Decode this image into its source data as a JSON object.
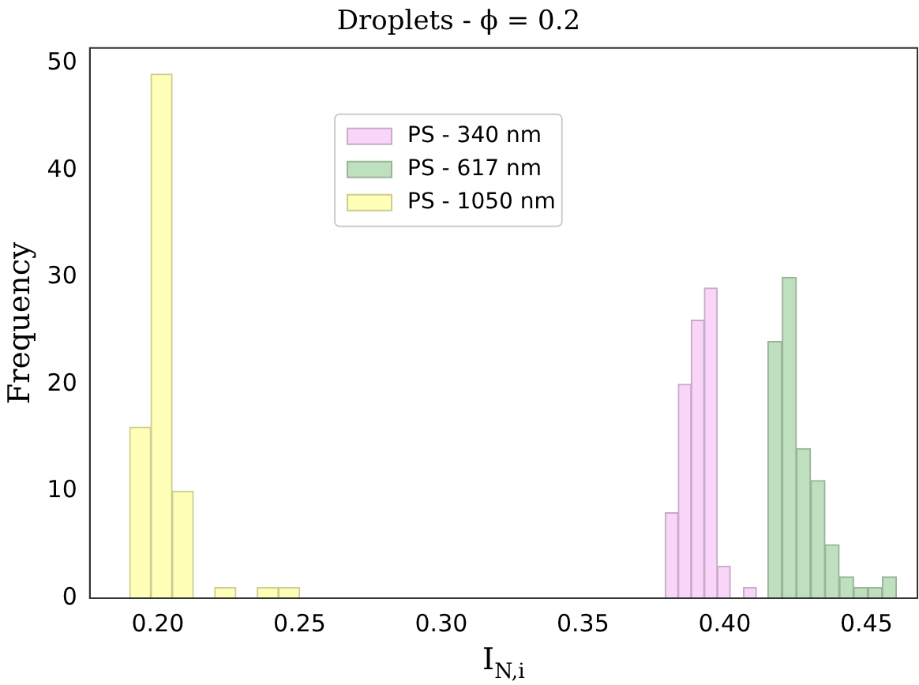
{
  "chart_data": {
    "type": "bar",
    "title": "Droplets - ϕ = 0.2",
    "xlabel": "I$_{N,i}$",
    "ylabel": "Frequency",
    "xlim": [
      0.176,
      0.468
    ],
    "xticks": [
      {
        "value": 0.2,
        "label": "0.20"
      },
      {
        "value": 0.25,
        "label": "0.25"
      },
      {
        "value": 0.3,
        "label": "0.30"
      },
      {
        "value": 0.35,
        "label": "0.35"
      },
      {
        "value": 0.4,
        "label": "0.40"
      },
      {
        "value": 0.45,
        "label": "0.45"
      }
    ],
    "ylim": [
      0,
      51.45
    ],
    "yticks": [
      0,
      10,
      20,
      30,
      40,
      50
    ],
    "legend": "top",
    "series": [
      {
        "name": "PS - 340 nm",
        "color": "#f9d6f9",
        "x": [
          0.3813,
          0.3859,
          0.3905,
          0.3951,
          0.3997,
          0.4043,
          0.4089
        ],
        "values": [
          8,
          20,
          26,
          29,
          3,
          0,
          1
        ]
      },
      {
        "name": "PS - 617 nm",
        "color": "#bfe0bf",
        "x": [
          0.4177,
          0.4228,
          0.4278,
          0.4329,
          0.4379,
          0.443,
          0.448,
          0.4531,
          0.4581
        ],
        "values": [
          24,
          30,
          14,
          11,
          5,
          2,
          1,
          1,
          2
        ]
      },
      {
        "name": "PS - 1050 nm",
        "color": "#ffffb8",
        "x": [
          0.1938,
          0.2013,
          0.2088,
          0.2163,
          0.2238,
          0.2313,
          0.2388,
          0.2463
        ],
        "values": [
          16,
          49,
          10,
          0,
          1,
          0,
          1,
          1
        ]
      }
    ]
  }
}
